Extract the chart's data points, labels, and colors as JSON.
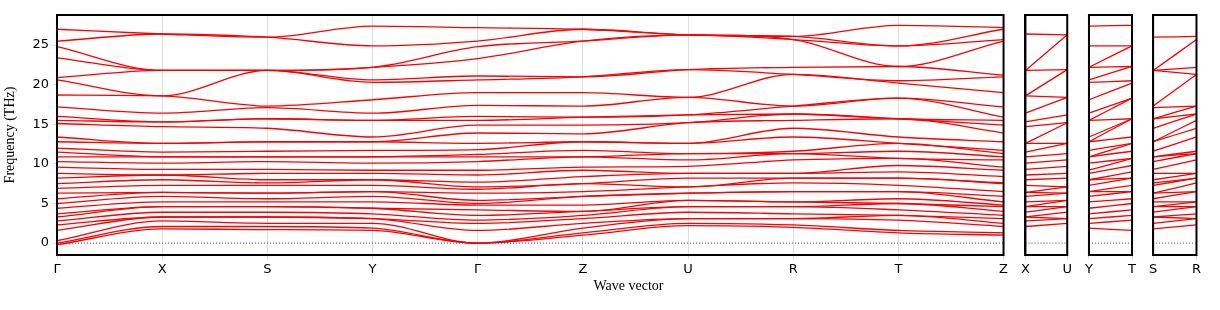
{
  "chart_data": [
    {
      "type": "line",
      "ylabel": "Frequency (THz)",
      "xlabel": "Wave vector",
      "color": "#ff0000",
      "grid": "x",
      "categories": [
        "Γ",
        "X",
        "S",
        "Y",
        "Γ",
        "Z",
        "U",
        "R",
        "T",
        "Z"
      ],
      "ylim": [
        -1.5,
        28.8
      ],
      "yticks": [
        0,
        5,
        10,
        15,
        20,
        25
      ],
      "ref_lines": [
        {
          "axis": "y",
          "value": 0,
          "color": "#0000ff",
          "line_style": "dotted"
        }
      ],
      "series": [
        {
          "values": [
            -0.2,
            1.8,
            1.7,
            1.6,
            0,
            1.0,
            2.2,
            2.0,
            1.3,
            1.0
          ]
        },
        {
          "values": [
            0,
            2.1,
            2.1,
            1.9,
            0,
            1.3,
            2.5,
            2.3,
            1.6,
            1.3
          ]
        },
        {
          "values": [
            0.3,
            2.8,
            2.5,
            2.5,
            0,
            1.9,
            3.1,
            3.1,
            2.9,
            2.1
          ]
        },
        {
          "values": [
            1.6,
            3.3,
            3.3,
            3.1,
            1.6,
            2.5,
            3.1,
            3.1,
            3.5,
            2.5
          ]
        },
        {
          "values": [
            2.3,
            3.3,
            3.3,
            3.1,
            2.5,
            3.1,
            3.9,
            3.7,
            3.5,
            3.1
          ]
        },
        {
          "values": [
            2.8,
            3.9,
            3.9,
            3.7,
            2.9,
            3.5,
            4.6,
            4.6,
            4.2,
            3.5
          ]
        },
        {
          "values": [
            3.3,
            4.6,
            4.6,
            4.4,
            3.5,
            4.0,
            4.6,
            4.6,
            5.0,
            4.0
          ]
        },
        {
          "values": [
            3.7,
            4.6,
            4.6,
            4.4,
            4.2,
            4.0,
            5.4,
            5.2,
            5.0,
            4.6
          ]
        },
        {
          "values": [
            4.4,
            5.2,
            5.2,
            5.2,
            4.8,
            4.8,
            5.4,
            5.2,
            5.6,
            4.8
          ]
        },
        {
          "values": [
            5.0,
            5.9,
            5.6,
            5.9,
            5.0,
            5.9,
            6.3,
            6.5,
            6.5,
            5.2
          ]
        },
        {
          "values": [
            5.6,
            6.4,
            6.3,
            6.5,
            5.4,
            5.9,
            6.3,
            6.5,
            6.5,
            5.9
          ]
        },
        {
          "values": [
            6.3,
            6.4,
            6.3,
            6.5,
            6.3,
            6.5,
            7.1,
            7.6,
            7.3,
            6.5
          ]
        },
        {
          "values": [
            6.9,
            7.3,
            7.3,
            7.3,
            6.8,
            7.5,
            7.1,
            8.2,
            8.2,
            7.5
          ]
        },
        {
          "values": [
            7.5,
            8.0,
            7.6,
            8.0,
            7.1,
            7.5,
            8.2,
            8.2,
            8.2,
            7.6
          ]
        },
        {
          "values": [
            8.2,
            8.6,
            8.0,
            8.0,
            7.7,
            8.4,
            8.8,
            8.8,
            9.0,
            8.4
          ]
        },
        {
          "values": [
            8.8,
            8.6,
            8.8,
            8.8,
            8.6,
            9.2,
            8.8,
            8.8,
            9.8,
            9.2
          ]
        },
        {
          "values": [
            9.6,
            9.3,
            9.3,
            9.2,
            9.2,
            9.6,
            9.7,
            10.5,
            10.7,
            9.6
          ]
        },
        {
          "values": [
            10.3,
            10.1,
            10.3,
            10.1,
            10.3,
            10.9,
            10.5,
            11.3,
            10.7,
            10.5
          ]
        },
        {
          "values": [
            10.9,
            10.9,
            10.9,
            10.9,
            10.9,
            10.9,
            11.3,
            11.3,
            11.6,
            10.9
          ]
        },
        {
          "values": [
            11.5,
            10.9,
            10.9,
            10.9,
            11.2,
            11.7,
            11.3,
            11.6,
            12.6,
            11.3
          ]
        },
        {
          "values": [
            12.0,
            11.5,
            11.6,
            11.7,
            11.8,
            12.8,
            12.6,
            13.4,
            12.6,
            11.7
          ]
        },
        {
          "values": [
            12.8,
            12.6,
            12.8,
            12.8,
            12.6,
            12.8,
            12.6,
            14.5,
            13.4,
            12.8
          ]
        },
        {
          "values": [
            13.4,
            12.6,
            12.8,
            12.8,
            13.9,
            13.8,
            15.2,
            15.5,
            15.7,
            13.9
          ]
        },
        {
          "values": [
            15.1,
            14.7,
            14.5,
            13.4,
            14.9,
            14.9,
            15.2,
            16.3,
            15.7,
            14.9
          ]
        },
        {
          "values": [
            15.5,
            15.3,
            15.7,
            15.5,
            15.5,
            15.9,
            16.2,
            16.3,
            15.7,
            15.5
          ]
        },
        {
          "values": [
            16.0,
            15.3,
            15.7,
            15.5,
            16.0,
            15.9,
            16.2,
            17.3,
            18.3,
            15.9
          ]
        },
        {
          "values": [
            17.2,
            16.4,
            17.1,
            16.4,
            17.4,
            17.3,
            18.4,
            17.3,
            18.3,
            17.2
          ]
        },
        {
          "values": [
            18.7,
            18.6,
            17.3,
            18.1,
            19.0,
            19.0,
            18.4,
            21.3,
            20.2,
            19.0
          ]
        },
        {
          "values": [
            20.6,
            18.6,
            21.8,
            20.3,
            20.6,
            21.0,
            21.9,
            21.3,
            20.5,
            21.0
          ]
        },
        {
          "values": [
            20.9,
            21.8,
            21.8,
            20.6,
            21.1,
            21.0,
            21.9,
            22.2,
            22.3,
            21.2
          ]
        },
        {
          "values": [
            23.4,
            21.8,
            21.8,
            22.2,
            23.3,
            25.5,
            26.3,
            25.7,
            22.3,
            25.5
          ]
        },
        {
          "values": [
            24.8,
            21.8,
            21.8,
            22.2,
            24.8,
            25.5,
            26.3,
            25.7,
            24.9,
            25.7
          ]
        },
        {
          "values": [
            25.5,
            26.4,
            26.0,
            24.9,
            25.5,
            27.0,
            26.3,
            26.1,
            24.9,
            27.0
          ]
        },
        {
          "values": [
            27.0,
            26.4,
            26.0,
            27.4,
            27.2,
            27.0,
            26.3,
            26.1,
            27.5,
            27.2
          ]
        }
      ]
    },
    {
      "type": "line",
      "color": "#ff0000",
      "tick_labels": "x",
      "categories": [
        "X",
        "U"
      ],
      "ylim": [
        -1.5,
        28.8
      ],
      "yticks": [
        0,
        5,
        10,
        15,
        20,
        25
      ],
      "ref_lines": [
        {
          "axis": "y",
          "value": 0,
          "color": "#0000ff",
          "line_style": "dotted"
        }
      ],
      "series": [
        {
          "values": [
            2.1,
            2.5
          ]
        },
        {
          "values": [
            2.8,
            3.1
          ]
        },
        {
          "values": [
            3.3,
            3.1
          ]
        },
        {
          "values": [
            3.3,
            3.9
          ]
        },
        {
          "values": [
            3.9,
            4.6
          ]
        },
        {
          "values": [
            4.6,
            4.6
          ]
        },
        {
          "values": [
            4.6,
            5.4
          ]
        },
        {
          "values": [
            5.2,
            5.4
          ]
        },
        {
          "values": [
            5.9,
            6.3
          ]
        },
        {
          "values": [
            6.4,
            6.3
          ]
        },
        {
          "values": [
            6.4,
            7.1
          ]
        },
        {
          "values": [
            7.3,
            7.1
          ]
        },
        {
          "values": [
            8.0,
            8.2
          ]
        },
        {
          "values": [
            8.6,
            8.8
          ]
        },
        {
          "values": [
            9.3,
            9.7
          ]
        },
        {
          "values": [
            10.1,
            10.5
          ]
        },
        {
          "values": [
            10.9,
            11.3
          ]
        },
        {
          "values": [
            11.5,
            12.6
          ]
        },
        {
          "values": [
            12.6,
            12.6
          ]
        },
        {
          "values": [
            12.6,
            15.2
          ]
        },
        {
          "values": [
            14.7,
            15.2
          ]
        },
        {
          "values": [
            15.3,
            16.2
          ]
        },
        {
          "values": [
            16.4,
            18.4
          ]
        },
        {
          "values": [
            18.6,
            18.4
          ]
        },
        {
          "values": [
            18.6,
            21.9
          ]
        },
        {
          "values": [
            21.8,
            21.9
          ]
        },
        {
          "values": [
            21.8,
            26.3
          ]
        },
        {
          "values": [
            26.4,
            26.3
          ]
        }
      ]
    },
    {
      "type": "line",
      "color": "#ff0000",
      "tick_labels": "x",
      "categories": [
        "Y",
        "T"
      ],
      "ylim": [
        -1.5,
        28.8
      ],
      "yticks": [
        0,
        5,
        10,
        15,
        20,
        25
      ],
      "ref_lines": [
        {
          "axis": "y",
          "value": 0,
          "color": "#0000ff",
          "line_style": "dotted"
        }
      ],
      "series": [
        {
          "values": [
            1.9,
            1.6
          ]
        },
        {
          "values": [
            2.5,
            2.9
          ]
        },
        {
          "values": [
            3.1,
            3.5
          ]
        },
        {
          "values": [
            3.7,
            4.2
          ]
        },
        {
          "values": [
            4.4,
            5.0
          ]
        },
        {
          "values": [
            5.2,
            5.6
          ]
        },
        {
          "values": [
            5.9,
            6.5
          ]
        },
        {
          "values": [
            6.5,
            6.5
          ]
        },
        {
          "values": [
            6.5,
            7.3
          ]
        },
        {
          "values": [
            7.3,
            8.2
          ]
        },
        {
          "values": [
            8.0,
            8.2
          ]
        },
        {
          "values": [
            8.0,
            9.0
          ]
        },
        {
          "values": [
            8.8,
            9.8
          ]
        },
        {
          "values": [
            9.2,
            10.7
          ]
        },
        {
          "values": [
            10.1,
            10.7
          ]
        },
        {
          "values": [
            10.9,
            11.6
          ]
        },
        {
          "values": [
            10.9,
            12.6
          ]
        },
        {
          "values": [
            11.7,
            12.6
          ]
        },
        {
          "values": [
            12.8,
            13.4
          ]
        },
        {
          "values": [
            12.8,
            15.7
          ]
        },
        {
          "values": [
            13.4,
            15.7
          ]
        },
        {
          "values": [
            15.5,
            15.7
          ]
        },
        {
          "values": [
            15.5,
            18.3
          ]
        },
        {
          "values": [
            16.4,
            18.3
          ]
        },
        {
          "values": [
            18.1,
            20.2
          ]
        },
        {
          "values": [
            20.3,
            20.5
          ]
        },
        {
          "values": [
            20.6,
            22.3
          ]
        },
        {
          "values": [
            22.2,
            22.3
          ]
        },
        {
          "values": [
            22.2,
            24.9
          ]
        },
        {
          "values": [
            24.9,
            24.9
          ]
        },
        {
          "values": [
            27.4,
            27.5
          ]
        }
      ]
    },
    {
      "type": "line",
      "color": "#ff0000",
      "tick_labels": "x",
      "categories": [
        "S",
        "R"
      ],
      "ylim": [
        -1.5,
        28.8
      ],
      "yticks": [
        0,
        5,
        10,
        15,
        20,
        25
      ],
      "ref_lines": [
        {
          "axis": "y",
          "value": 0,
          "color": "#0000ff",
          "line_style": "dotted"
        }
      ],
      "series": [
        {
          "values": [
            1.8,
            2.3
          ]
        },
        {
          "values": [
            2.5,
            3.1
          ]
        },
        {
          "values": [
            3.3,
            3.1
          ]
        },
        {
          "values": [
            3.3,
            3.7
          ]
        },
        {
          "values": [
            3.9,
            4.6
          ]
        },
        {
          "values": [
            4.6,
            4.6
          ]
        },
        {
          "values": [
            4.6,
            5.2
          ]
        },
        {
          "values": [
            5.2,
            5.2
          ]
        },
        {
          "values": [
            5.6,
            6.5
          ]
        },
        {
          "values": [
            6.3,
            6.5
          ]
        },
        {
          "values": [
            6.3,
            7.6
          ]
        },
        {
          "values": [
            7.3,
            8.2
          ]
        },
        {
          "values": [
            7.6,
            8.2
          ]
        },
        {
          "values": [
            8.0,
            8.8
          ]
        },
        {
          "values": [
            8.8,
            8.8
          ]
        },
        {
          "values": [
            9.3,
            10.5
          ]
        },
        {
          "values": [
            10.3,
            11.3
          ]
        },
        {
          "values": [
            10.9,
            11.3
          ]
        },
        {
          "values": [
            10.9,
            11.6
          ]
        },
        {
          "values": [
            11.6,
            13.4
          ]
        },
        {
          "values": [
            12.8,
            14.5
          ]
        },
        {
          "values": [
            12.8,
            15.5
          ]
        },
        {
          "values": [
            14.5,
            16.3
          ]
        },
        {
          "values": [
            15.7,
            16.3
          ]
        },
        {
          "values": [
            15.7,
            17.3
          ]
        },
        {
          "values": [
            17.1,
            17.3
          ]
        },
        {
          "values": [
            17.3,
            21.3
          ]
        },
        {
          "values": [
            21.8,
            21.3
          ]
        },
        {
          "values": [
            21.8,
            22.2
          ]
        },
        {
          "values": [
            21.8,
            25.7
          ]
        },
        {
          "values": [
            26.0,
            26.1
          ]
        }
      ]
    }
  ]
}
